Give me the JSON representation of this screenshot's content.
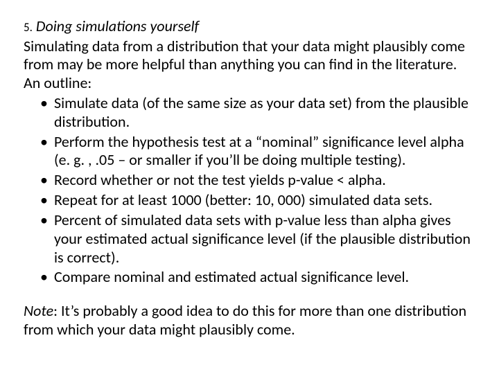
{
  "text_color": "#000000",
  "background_color": "#ffffff",
  "font_family": "Calibri",
  "heading": {
    "number": "5.",
    "title": "Doing simulations yourself"
  },
  "intro": "Simulating data from a distribution that your data might plausibly come from may be more helpful than anything you can find in the literature. An outline:",
  "bullets": [
    "Simulate data (of the same size as your data set) from the plausible distribution.",
    "Perform the hypothesis test at a “nominal” significance level alpha (e. g. , .05 – or smaller if you’ll be doing multiple testing).",
    "Record whether or not the test yields p-value < alpha.",
    "Repeat for at least 1000 (better: 10, 000) simulated data sets.",
    "Percent of simulated data sets with p-value less than alpha gives your estimated actual significance level (if the plausible distribution is correct).",
    "Compare nominal and estimated actual significance level."
  ],
  "note": {
    "label": "Note",
    "text": ": It’s probably a good idea to do this for more than one distribution from which your data might plausibly come."
  }
}
